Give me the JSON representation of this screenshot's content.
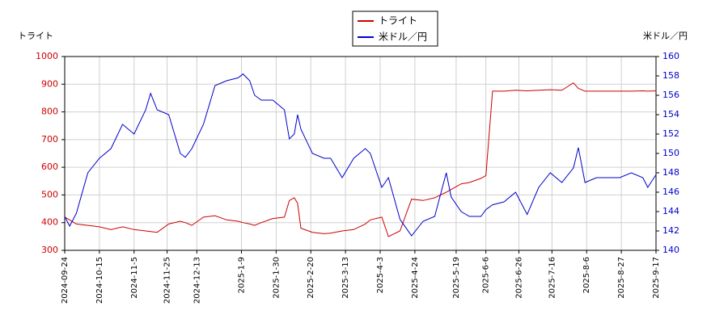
{
  "chart_data": {
    "type": "line",
    "y_label": "トライト",
    "y2_label": "米ドル／円",
    "x": [
      "2024-09-24",
      "2024-09-27",
      "2024-10-01",
      "2024-10-08",
      "2024-10-15",
      "2024-10-22",
      "2024-10-29",
      "2024-11-05",
      "2024-11-12",
      "2024-11-15",
      "2024-11-19",
      "2024-11-26",
      "2024-12-03",
      "2024-12-06",
      "2024-12-10",
      "2024-12-17",
      "2024-12-24",
      "2024-12-31",
      "2025-01-07",
      "2025-01-10",
      "2025-01-14",
      "2025-01-17",
      "2025-01-21",
      "2025-01-28",
      "2025-02-04",
      "2025-02-07",
      "2025-02-10",
      "2025-02-12",
      "2025-02-14",
      "2025-02-21",
      "2025-02-28",
      "2025-03-04",
      "2025-03-11",
      "2025-03-18",
      "2025-03-25",
      "2025-03-28",
      "2025-04-04",
      "2025-04-08",
      "2025-04-15",
      "2025-04-22",
      "2025-04-29",
      "2025-05-06",
      "2025-05-13",
      "2025-05-16",
      "2025-05-22",
      "2025-05-27",
      "2025-06-03",
      "2025-06-06",
      "2025-06-10",
      "2025-06-17",
      "2025-06-24",
      "2025-07-01",
      "2025-07-08",
      "2025-07-15",
      "2025-07-22",
      "2025-07-29",
      "2025-08-01",
      "2025-08-05",
      "2025-08-12",
      "2025-08-19",
      "2025-08-26",
      "2025-09-02",
      "2025-09-09",
      "2025-09-12",
      "2025-09-17"
    ],
    "series": [
      {
        "name": "トライト",
        "color": "#cc0000",
        "axis": "y",
        "values": [
          420,
          410,
          395,
          390,
          385,
          375,
          385,
          375,
          370,
          368,
          365,
          395,
          405,
          400,
          390,
          420,
          425,
          410,
          405,
          400,
          395,
          390,
          400,
          415,
          420,
          480,
          490,
          470,
          380,
          365,
          360,
          362,
          370,
          375,
          395,
          410,
          420,
          350,
          370,
          485,
          480,
          490,
          510,
          520,
          540,
          545,
          560,
          570,
          875,
          875,
          878,
          876,
          878,
          880,
          878,
          905,
          885,
          875,
          875,
          875,
          875,
          875,
          876,
          875,
          876
        ]
      },
      {
        "name": "米ドル／円",
        "color": "#0000cc",
        "axis": "y2",
        "values": [
          143.5,
          142.5,
          143.8,
          148,
          149.5,
          150.5,
          153,
          152,
          154.5,
          156.2,
          154.5,
          154,
          150,
          149.6,
          150.5,
          153,
          157,
          157.5,
          157.8,
          158.2,
          157.5,
          156,
          155.5,
          155.5,
          154.5,
          151.5,
          152,
          154,
          152.5,
          150,
          149.5,
          149.5,
          147.5,
          149.5,
          150.5,
          150,
          146.5,
          147.5,
          143.2,
          141.5,
          143,
          143.5,
          148,
          145.5,
          144,
          143.5,
          143.5,
          144.2,
          144.7,
          145,
          146,
          143.7,
          146.5,
          148,
          147,
          148.5,
          150.6,
          147,
          147.5,
          147.5,
          147.5,
          148,
          147.5,
          146.5,
          147.8
        ]
      }
    ],
    "xlim": [
      "2024-09-24",
      "2025-09-17"
    ],
    "xticks": [
      "2024-09-24",
      "2024-10-15",
      "2024-11-5",
      "2024-11-25",
      "2024-12-13",
      "2025-1-9",
      "2025-1-30",
      "2025-2-20",
      "2025-3-13",
      "2025-4-3",
      "2025-4-24",
      "2025-5-19",
      "2025-6-6",
      "2025-6-26",
      "2025-7-16",
      "2025-8-6",
      "2025-8-27",
      "2025-9-17"
    ],
    "ylim": [
      300,
      1000
    ],
    "yticks": [
      300,
      400,
      500,
      600,
      700,
      800,
      900,
      1000
    ],
    "y2lim": [
      140,
      160
    ],
    "y2ticks": [
      140,
      142,
      144,
      146,
      148,
      150,
      152,
      154,
      156,
      158,
      160
    ],
    "grid": true,
    "legend": "top"
  }
}
